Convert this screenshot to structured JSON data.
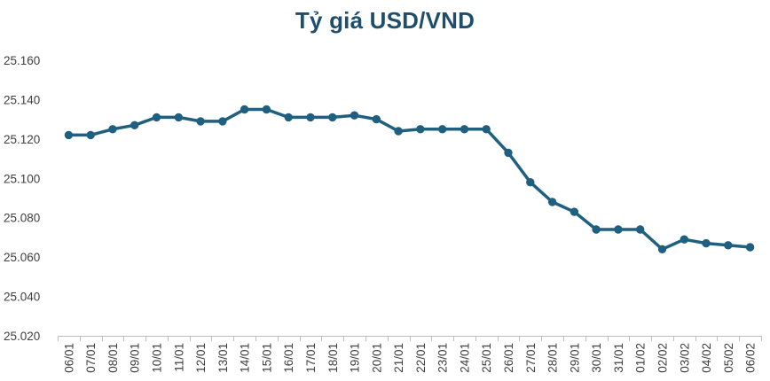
{
  "chart_data": {
    "type": "line",
    "title": "Tỷ giá USD/VND",
    "xlabel": "",
    "ylabel": "",
    "ylim": [
      25.02,
      25.16
    ],
    "y_ticks": [
      "25.020",
      "25.040",
      "25.060",
      "25.080",
      "25.100",
      "25.120",
      "25.140",
      "25.160"
    ],
    "grid": false,
    "legend": "none",
    "line_color": "#1f5f7f",
    "categories": [
      "06/01",
      "07/01",
      "08/01",
      "09/01",
      "10/01",
      "11/01",
      "12/01",
      "13/01",
      "14/01",
      "15/01",
      "16/01",
      "17/01",
      "18/01",
      "19/01",
      "20/01",
      "21/01",
      "22/01",
      "23/01",
      "24/01",
      "25/01",
      "26/01",
      "27/01",
      "28/01",
      "29/01",
      "30/01",
      "31/01",
      "01/02",
      "02/02",
      "03/02",
      "04/02",
      "05/02",
      "06/02"
    ],
    "series": [
      {
        "values": [
          25.122,
          25.122,
          25.125,
          25.127,
          25.131,
          25.131,
          25.129,
          25.129,
          25.135,
          25.135,
          25.131,
          25.131,
          25.131,
          25.132,
          25.13,
          25.124,
          25.125,
          25.125,
          25.125,
          25.125,
          25.113,
          25.098,
          25.088,
          25.083,
          25.074,
          25.074,
          25.074,
          25.064,
          25.069,
          25.067,
          25.066,
          25.065
        ]
      }
    ]
  }
}
